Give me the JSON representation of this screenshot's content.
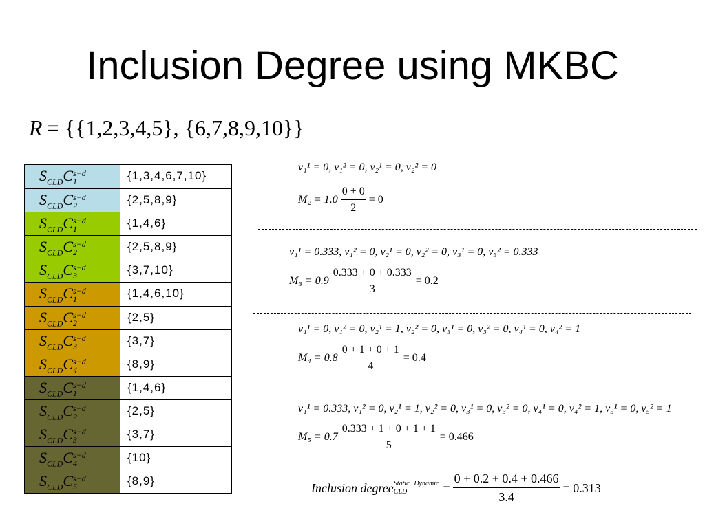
{
  "title": "Inclusion Degree using MKBC",
  "set_r": {
    "lhs": "R",
    "rhs": "= {{1,2,3,4,5}, {6,7,8,9,10}}"
  },
  "label": {
    "base": "S",
    "sub": "CLD",
    "letter": "C",
    "sup": "s−d"
  },
  "groups": [
    {
      "color": "#b7dde8",
      "rows": [
        {
          "index": "1",
          "set": "{1,3,4,6,7,10}"
        },
        {
          "index": "2",
          "set": "{2,5,8,9}"
        }
      ]
    },
    {
      "color": "#99cc00",
      "rows": [
        {
          "index": "1",
          "set": "{1,4,6}"
        },
        {
          "index": "2",
          "set": "{2,5,8,9}"
        },
        {
          "index": "3",
          "set": "{3,7,10}"
        }
      ]
    },
    {
      "color": "#cc9900",
      "rows": [
        {
          "index": "1",
          "set": "{1,4,6,10}"
        },
        {
          "index": "2",
          "set": "{2,5}"
        },
        {
          "index": "3",
          "set": "{3,7}"
        },
        {
          "index": "4",
          "set": "{8,9}"
        }
      ]
    },
    {
      "color": "#666633",
      "rows": [
        {
          "index": "1",
          "set": "{1,4,6}"
        },
        {
          "index": "2",
          "set": "{2,5}"
        },
        {
          "index": "3",
          "set": "{3,7}"
        },
        {
          "index": "4",
          "set": "{10}"
        },
        {
          "index": "5",
          "set": "{8,9}"
        }
      ]
    }
  ],
  "blocks": [
    {
      "v_line": "v₁¹ = 0, v₁² = 0, v₂¹ = 0, v₂² = 0",
      "lhs": "M₂ = 1.0",
      "num": "0 + 0",
      "den": "2",
      "rhs": "= 0"
    },
    {
      "v_line": "v₁¹ = 0.333, v₁² = 0, v₂¹ = 0, v₂² = 0, v₃¹ = 0, v₃² = 0.333",
      "lhs": "M₃ = 0.9",
      "num": "0.333 + 0 + 0.333",
      "den": "3",
      "rhs": "= 0.2"
    },
    {
      "v_line": "v₁¹ = 0, v₁² = 0, v₂¹ = 1, v₂² = 0, v₃¹ = 0, v₃² = 0, v₄¹ = 0, v₄² = 1",
      "lhs": "M₄ = 0.8",
      "num": "0 + 1 + 0 + 1",
      "den": "4",
      "rhs": "= 0.4"
    },
    {
      "v_line": "v₁¹ = 0.333, v₁² = 0, v₂¹ = 1, v₂² = 0, v₃¹ = 0, v₃² = 0, v₄¹ = 0, v₄² = 1, v₅¹ = 0, v₅² = 1",
      "lhs": "M₅ = 0.7",
      "num": "0.333 + 1 + 0 + 1 + 1",
      "den": "5",
      "rhs": "= 0.466"
    }
  ],
  "final": {
    "lhs": "Inclusion degree",
    "sup": "Static−Dynamic",
    "sub": "CLD",
    "eq": "=",
    "num": "0 + 0.2 + 0.4 + 0.466",
    "den": "3.4",
    "rhs": "= 0.313"
  }
}
